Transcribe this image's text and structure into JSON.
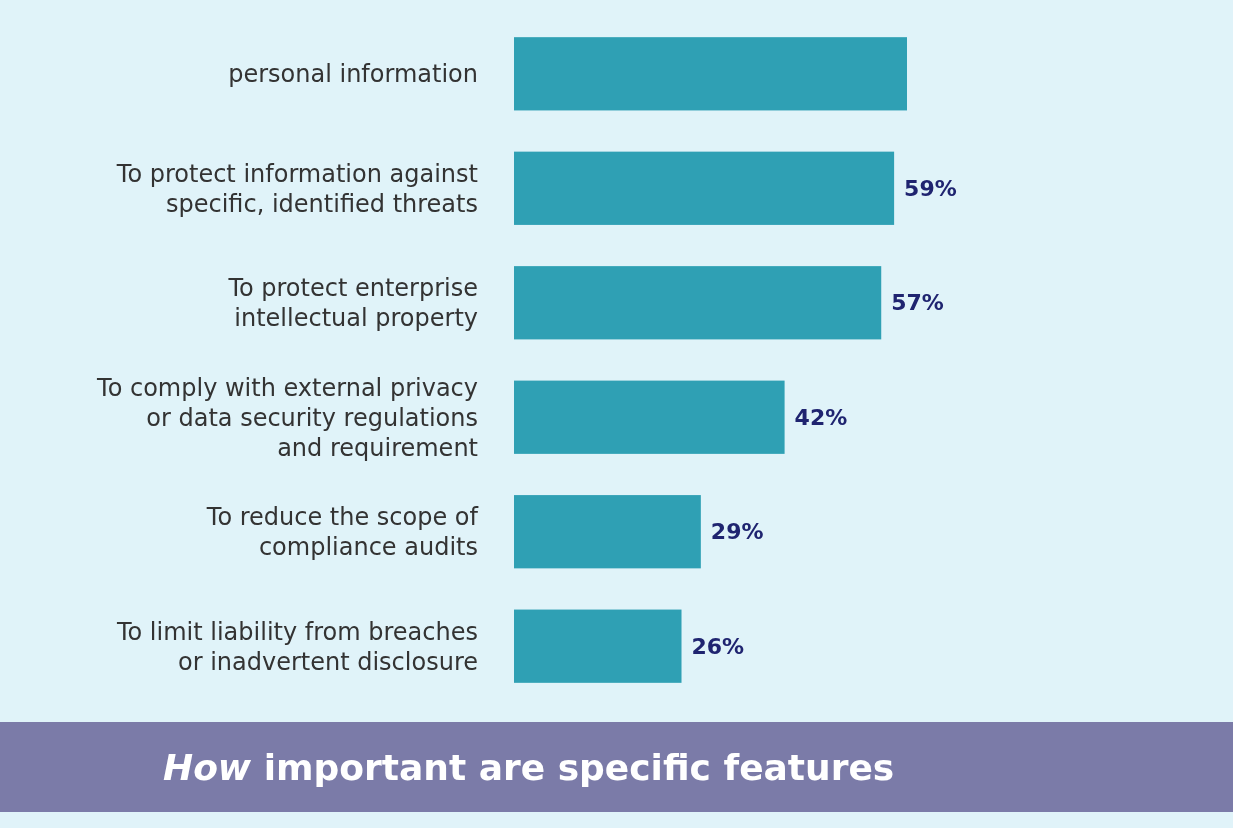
{
  "chart_data": {
    "type": "bar",
    "orientation": "horizontal",
    "categories": [
      "personal information",
      "To protect information against\nspecific, identified threats",
      "To protect enterprise\nintellectual property",
      "To comply with external privacy\nor data security regulations\nand requirement",
      "To reduce the scope of\ncompliance audits",
      "To limit liability from breaches\nor inadvertent disclosure"
    ],
    "values": [
      61,
      59,
      57,
      42,
      29,
      26
    ],
    "value_labels": [
      null,
      "59%",
      "57%",
      "42%",
      "29%",
      "26%"
    ],
    "color": "#2fa0b4",
    "annotations": [
      "How important are specific features"
    ]
  }
}
